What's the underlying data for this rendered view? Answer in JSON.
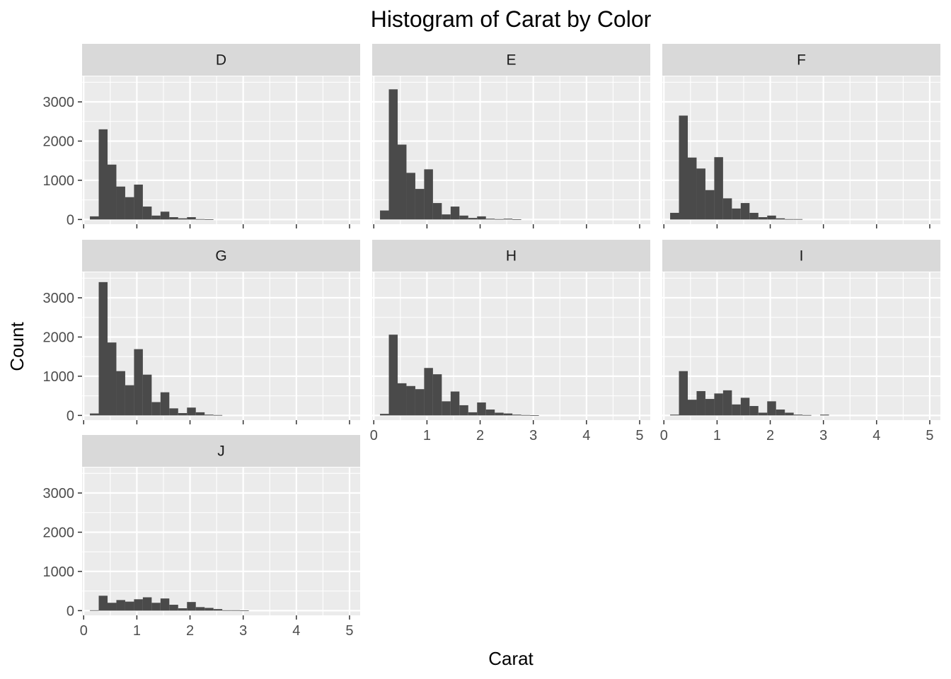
{
  "chart_data": {
    "type": "bar",
    "title": "Histogram of Carat by Color",
    "xlabel": "Carat",
    "ylabel": "Count",
    "xlim": [
      -0.03,
      5.2
    ],
    "ylim": [
      -120,
      3650
    ],
    "xticks": [
      0,
      1,
      2,
      3,
      4,
      5
    ],
    "yticks": [
      0,
      1000,
      2000,
      3000
    ],
    "grid": true,
    "bin_width": 0.166,
    "bin_centers": [
      0.2,
      0.366,
      0.532,
      0.698,
      0.864,
      1.03,
      1.196,
      1.362,
      1.528,
      1.694,
      1.86,
      2.026,
      2.192,
      2.358,
      2.524,
      2.69,
      2.856,
      3.022,
      3.188,
      3.354,
      3.52,
      3.686,
      3.852,
      4.018,
      4.184,
      4.35,
      4.516,
      4.682,
      4.848,
      5.014
    ],
    "facets": [
      {
        "panel": "D",
        "values": [
          80,
          2300,
          1400,
          840,
          570,
          890,
          330,
          100,
          200,
          60,
          30,
          60,
          10,
          5,
          0,
          0,
          0,
          0,
          0,
          0,
          0,
          0,
          0,
          0,
          0,
          0,
          0,
          0,
          0,
          0
        ]
      },
      {
        "panel": "E",
        "values": [
          230,
          3320,
          1910,
          1190,
          780,
          1280,
          420,
          130,
          330,
          100,
          40,
          80,
          20,
          10,
          20,
          5,
          0,
          0,
          0,
          0,
          0,
          0,
          0,
          0,
          0,
          0,
          0,
          0,
          0,
          0
        ]
      },
      {
        "panel": "F",
        "values": [
          170,
          2650,
          1580,
          1300,
          750,
          1590,
          540,
          280,
          420,
          170,
          60,
          100,
          30,
          10,
          10,
          0,
          0,
          0,
          0,
          0,
          0,
          0,
          0,
          0,
          0,
          0,
          0,
          0,
          0,
          0
        ]
      },
      {
        "panel": "G",
        "values": [
          50,
          3400,
          1860,
          1130,
          770,
          1690,
          1040,
          340,
          590,
          180,
          60,
          200,
          80,
          20,
          10,
          0,
          0,
          0,
          0,
          0,
          0,
          0,
          0,
          0,
          0,
          0,
          0,
          0,
          0,
          0
        ]
      },
      {
        "panel": "H",
        "values": [
          40,
          2060,
          820,
          750,
          670,
          1210,
          1050,
          360,
          610,
          260,
          80,
          330,
          150,
          70,
          50,
          20,
          10,
          5,
          0,
          0,
          0,
          0,
          0,
          0,
          0,
          0,
          0,
          0,
          0,
          0
        ]
      },
      {
        "panel": "I",
        "values": [
          20,
          1130,
          400,
          620,
          420,
          560,
          640,
          280,
          450,
          240,
          70,
          360,
          150,
          70,
          20,
          10,
          0,
          20,
          0,
          0,
          0,
          0,
          0,
          0,
          0,
          0,
          0,
          0,
          0,
          0
        ]
      },
      {
        "panel": "J",
        "values": [
          10,
          380,
          200,
          270,
          230,
          290,
          340,
          200,
          310,
          150,
          60,
          220,
          90,
          70,
          40,
          10,
          10,
          5,
          0,
          0,
          0,
          0,
          0,
          0,
          0,
          0,
          0,
          0,
          0,
          0
        ]
      }
    ]
  },
  "colors": {
    "panel_background": "#ebebeb",
    "strip_background": "#d9d9d9",
    "grid_major": "#ffffff",
    "bar_fill": "#4a4a4a",
    "text_dark": "#000000",
    "tick_text": "#4d4d4d"
  }
}
